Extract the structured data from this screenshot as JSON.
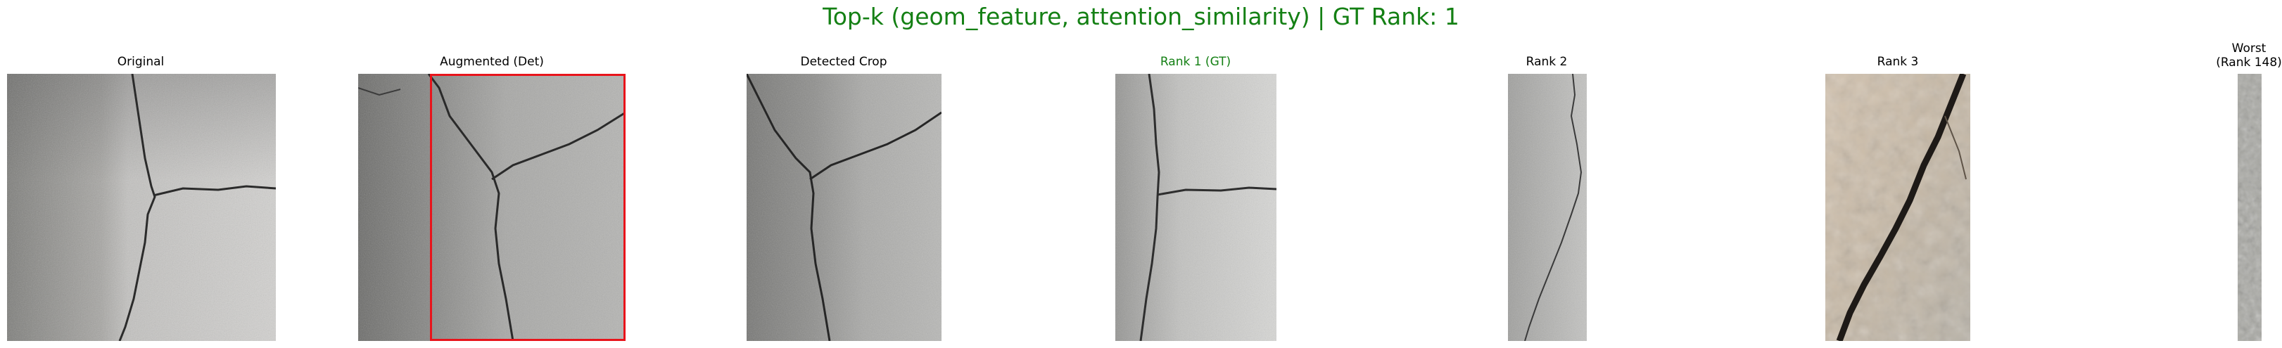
{
  "figure": {
    "title": "Top-k (geom_feature, attention_similarity) | GT Rank: 1",
    "title_color": "#148014",
    "gt_color": "#148014",
    "box_color": "#e8141b"
  },
  "panels": [
    {
      "label": "Original",
      "image": "concrete crack, Y-shaped fork"
    },
    {
      "label": "Augmented (Det)",
      "image": "augmented concrete crack with red detection box"
    },
    {
      "label": "Detected Crop",
      "image": "cropped concrete crack"
    },
    {
      "label": "Rank 1 (GT)",
      "image": "ground-truth concrete crack",
      "highlight": true
    },
    {
      "label": "Rank 2",
      "image": "narrow strip with vertical crack"
    },
    {
      "label": "Rank 3",
      "image": "beige stone with dark diagonal crack"
    },
    {
      "label": "Worst\n(Rank 148)",
      "image": "very narrow grey noise strip"
    }
  ]
}
